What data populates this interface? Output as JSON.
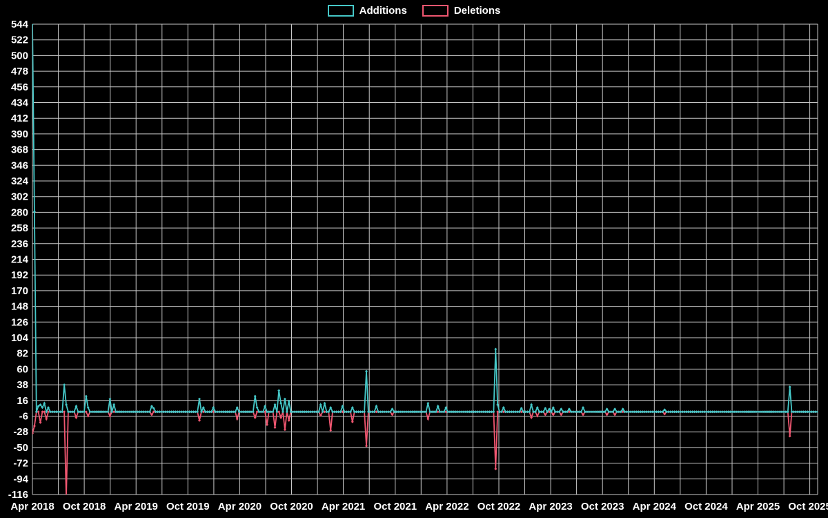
{
  "chart_data": {
    "type": "line",
    "title": "",
    "subtitle": "",
    "xlabel": "",
    "ylabel": "",
    "x_tick_labels": [
      "Apr 2018",
      "Oct 2018",
      "Apr 2019",
      "Oct 2019",
      "Apr 2020",
      "Oct 2020",
      "Apr 2021",
      "Oct 2021",
      "Apr 2022",
      "Oct 2022",
      "Apr 2023",
      "Oct 2023",
      "Apr 2024",
      "Oct 2024",
      "Apr 2025",
      "Oct 2025"
    ],
    "x_tick_interval_months": 6,
    "grid_interval_months": 3,
    "y_ticks": [
      544,
      522,
      500,
      478,
      456,
      434,
      412,
      390,
      368,
      346,
      324,
      302,
      280,
      258,
      236,
      214,
      192,
      170,
      148,
      126,
      104,
      82,
      60,
      38,
      16,
      -6,
      -28,
      -50,
      -72,
      -94,
      -116
    ],
    "ylim": [
      -116,
      544
    ],
    "y_tick_step": 22,
    "grid": true,
    "legend_position": "top-center",
    "background_color": "#000000",
    "grid_color": "#c9c9c9",
    "text_color": "#ffffff",
    "marker_shape": "diamond",
    "point_interval": "weekly",
    "n_points": 396,
    "x_range": [
      "Apr 2018",
      "Nov 2025"
    ],
    "baseline_value": 0,
    "series": [
      {
        "name": "Additions",
        "color": "#45c7c7",
        "default_value": 0,
        "spikes": {
          "0": 544,
          "1": 281,
          "3": 8,
          "4": 10,
          "5": 6,
          "6": 12,
          "8": 6,
          "16": 38,
          "17": 10,
          "22": 8,
          "27": 22,
          "28": 6,
          "39": 18,
          "41": 10,
          "60": 8,
          "61": 5,
          "84": 18,
          "86": 6,
          "91": 6,
          "103": 6,
          "112": 22,
          "113": 6,
          "117": 8,
          "122": 10,
          "124": 30,
          "125": 12,
          "127": 18,
          "129": 15,
          "145": 10,
          "147": 12,
          "150": 6,
          "156": 8,
          "161": 6,
          "168": 57,
          "173": 8,
          "181": 4,
          "199": 12,
          "204": 8,
          "208": 6,
          "233": 88,
          "234": 10,
          "237": 6,
          "246": 5,
          "251": 10,
          "254": 6,
          "258": 5,
          "260": 4,
          "262": 6,
          "266": 4,
          "270": 4,
          "277": 6,
          "289": 4,
          "293": 4,
          "297": 4,
          "318": 3,
          "381": 35
        }
      },
      {
        "name": "Deletions",
        "color": "#ef5670",
        "default_value": 0,
        "spikes": {
          "0": -30,
          "1": -20,
          "4": -15,
          "7": -10,
          "17": -120,
          "22": -8,
          "28": -6,
          "39": -6,
          "60": -4,
          "84": -12,
          "103": -10,
          "112": -8,
          "118": -18,
          "122": -22,
          "125": -8,
          "127": -25,
          "129": -12,
          "145": -5,
          "150": -26,
          "161": -14,
          "168": -48,
          "181": -4,
          "199": -10,
          "233": -80,
          "251": -8,
          "254": -6,
          "258": -4,
          "262": -4,
          "266": -4,
          "277": -4,
          "289": -4,
          "293": -4,
          "318": -3,
          "381": -34
        }
      }
    ]
  }
}
